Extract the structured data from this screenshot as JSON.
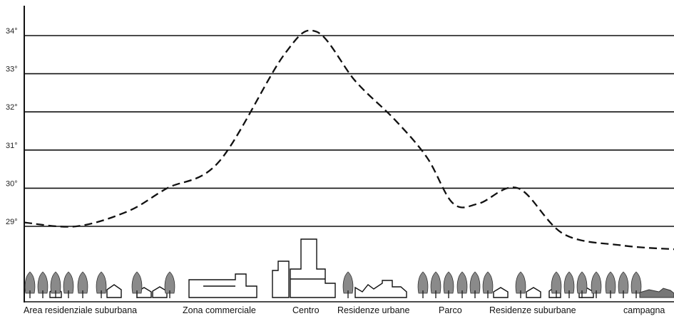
{
  "chart_data": {
    "type": "line",
    "title": "",
    "xlabel": "",
    "ylabel": "",
    "ylim": [
      29,
      34
    ],
    "yticks": [
      "34°",
      "33°",
      "32°",
      "31°",
      "30°",
      "29°"
    ],
    "grid": true,
    "line_style": "dashed",
    "zones": [
      "Area residenziale suburbana",
      "Zona commerciale",
      "Centro",
      "Residenze urbane",
      "Parco",
      "Residenze suburbane",
      "campagna"
    ],
    "series": [
      {
        "values": [
          {
            "x": 0.0,
            "y": 29.1
          },
          {
            "x": 0.08,
            "y": 29.0
          },
          {
            "x": 0.16,
            "y": 29.4
          },
          {
            "x": 0.22,
            "y": 30.0
          },
          {
            "x": 0.3,
            "y": 30.7
          },
          {
            "x": 0.4,
            "y": 33.5
          },
          {
            "x": 0.45,
            "y": 34.1
          },
          {
            "x": 0.51,
            "y": 32.8
          },
          {
            "x": 0.57,
            "y": 31.8
          },
          {
            "x": 0.62,
            "y": 30.8
          },
          {
            "x": 0.66,
            "y": 29.6
          },
          {
            "x": 0.7,
            "y": 29.6
          },
          {
            "x": 0.76,
            "y": 30.0
          },
          {
            "x": 0.83,
            "y": 28.8
          },
          {
            "x": 0.92,
            "y": 28.5
          },
          {
            "x": 1.0,
            "y": 28.4
          }
        ]
      }
    ]
  },
  "colors": {
    "line": "#111111",
    "grid": "#111111",
    "tree": "#8a8a8a",
    "building": "#111111"
  }
}
